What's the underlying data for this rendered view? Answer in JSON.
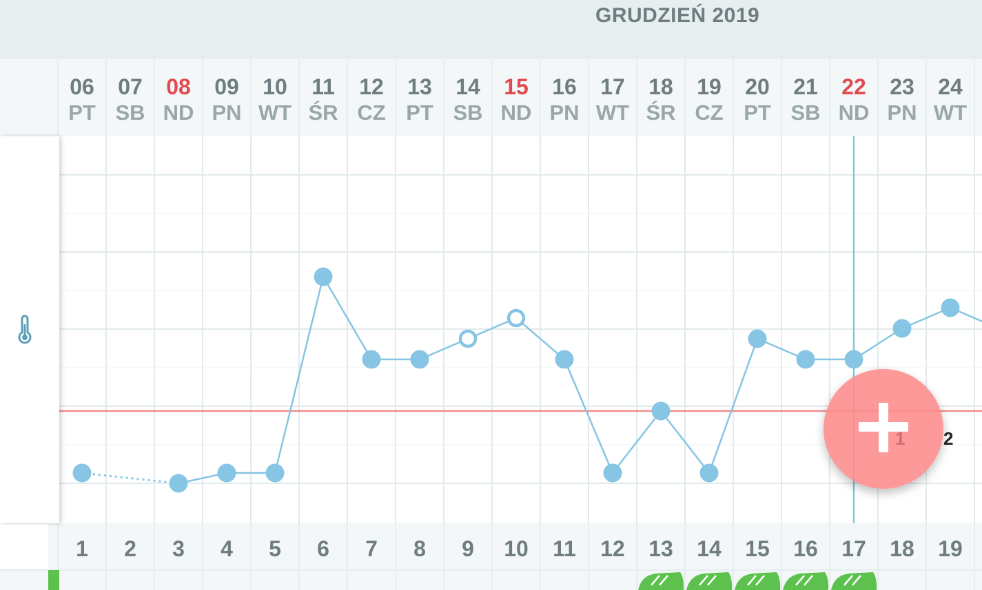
{
  "header": {
    "month_title": "GRUDZIEŃ 2019"
  },
  "days": [
    {
      "num": "06",
      "wd": "PT",
      "holiday": false
    },
    {
      "num": "07",
      "wd": "SB",
      "holiday": false
    },
    {
      "num": "08",
      "wd": "ND",
      "holiday": true
    },
    {
      "num": "09",
      "wd": "PN",
      "holiday": false
    },
    {
      "num": "10",
      "wd": "WT",
      "holiday": false
    },
    {
      "num": "11",
      "wd": "ŚR",
      "holiday": false
    },
    {
      "num": "12",
      "wd": "CZ",
      "holiday": false
    },
    {
      "num": "13",
      "wd": "PT",
      "holiday": false
    },
    {
      "num": "14",
      "wd": "SB",
      "holiday": false
    },
    {
      "num": "15",
      "wd": "ND",
      "holiday": true
    },
    {
      "num": "16",
      "wd": "PN",
      "holiday": false
    },
    {
      "num": "17",
      "wd": "WT",
      "holiday": false
    },
    {
      "num": "18",
      "wd": "ŚR",
      "holiday": false
    },
    {
      "num": "19",
      "wd": "CZ",
      "holiday": false
    },
    {
      "num": "20",
      "wd": "PT",
      "holiday": false
    },
    {
      "num": "21",
      "wd": "SB",
      "holiday": false
    },
    {
      "num": "22",
      "wd": "ND",
      "holiday": true
    },
    {
      "num": "23",
      "wd": "PN",
      "holiday": false
    },
    {
      "num": "24",
      "wd": "WT",
      "holiday": false
    }
  ],
  "cycle_days": [
    "1",
    "2",
    "3",
    "4",
    "5",
    "6",
    "7",
    "8",
    "9",
    "10",
    "11",
    "12",
    "13",
    "14",
    "15",
    "16",
    "17",
    "18",
    "19"
  ],
  "chart_data": {
    "type": "line",
    "x": [
      "06",
      "07",
      "08",
      "09",
      "10",
      "11",
      "12",
      "13",
      "14",
      "15",
      "16",
      "17",
      "18",
      "19",
      "20",
      "21",
      "22",
      "23",
      "24"
    ],
    "series": [
      {
        "values": [
          1.0,
          null,
          0.75,
          1.0,
          1.0,
          5.75,
          3.75,
          3.75,
          4.25,
          4.75,
          3.75,
          1.0,
          2.5,
          1.0,
          4.25,
          3.75,
          3.75,
          4.5,
          5.0
        ]
      }
    ],
    "open_points": [
      "14",
      "15"
    ],
    "dotted_segment": [
      "06",
      "08"
    ],
    "partial_next_value": 4.5,
    "coverline": 2.5,
    "selected_day": "22",
    "ylim": [
      -0.5,
      8.25
    ],
    "grid": true
  },
  "fab": {
    "label_1": "1",
    "label_2": "2"
  },
  "markers": {
    "green_days": [
      "18",
      "19",
      "20",
      "21",
      "22"
    ]
  },
  "colors": {
    "line": "#86c5e3",
    "point": "#86c5e3",
    "coverline": "#ef8e8e",
    "holiday": "#e14a4f",
    "selected_line": "#86c5e3",
    "fab": "#fd8b8b",
    "green": "#5cc14d"
  },
  "icons": {
    "temperature": "thermometer-icon",
    "fab": "plus-icon"
  }
}
